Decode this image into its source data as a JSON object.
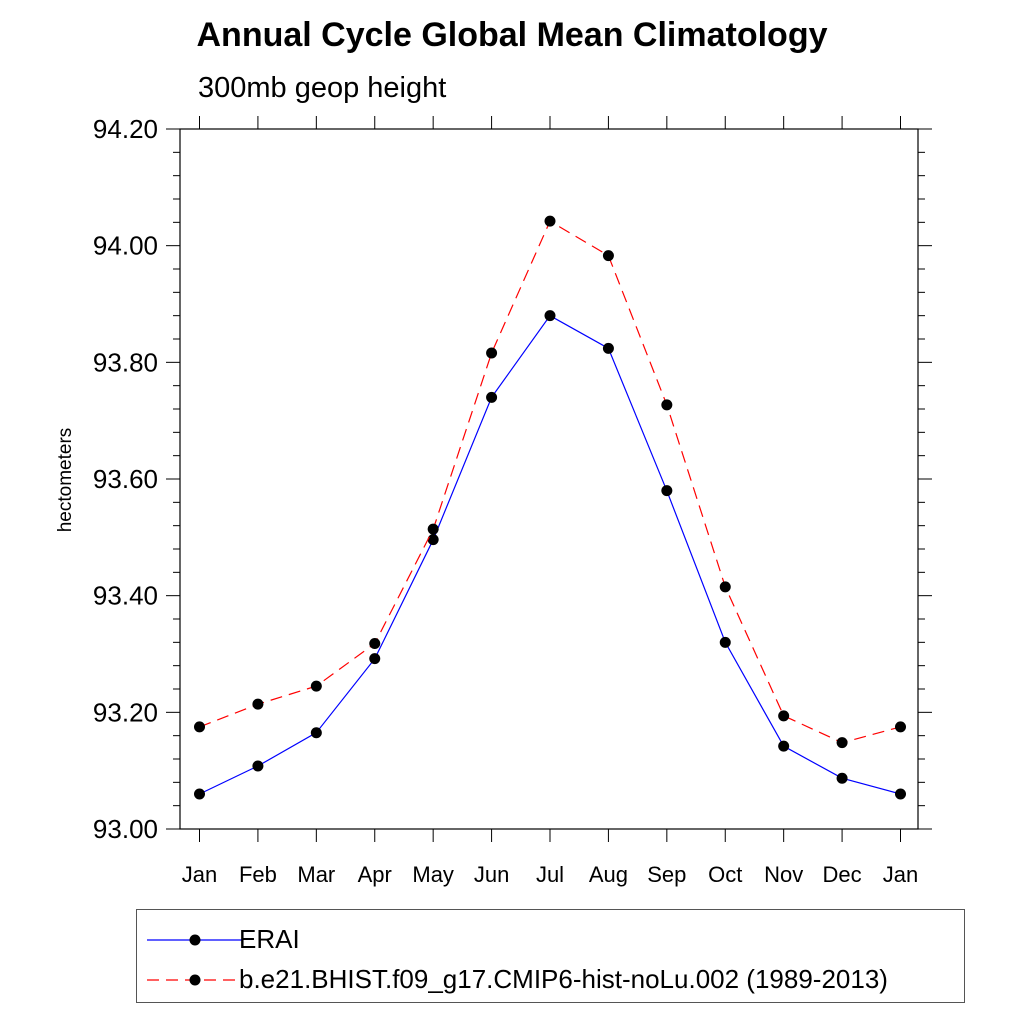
{
  "chart_data": {
    "type": "line",
    "title": "Annual Cycle Global Mean Climatology",
    "subtitle": "300mb geop height",
    "ylabel": "hectometers",
    "xlabel": "",
    "categories": [
      "Jan",
      "Feb",
      "Mar",
      "Apr",
      "May",
      "Jun",
      "Jul",
      "Aug",
      "Sep",
      "Oct",
      "Nov",
      "Dec",
      "Jan"
    ],
    "ylim": [
      93.0,
      94.2
    ],
    "yticks": [
      "93.00",
      "93.20",
      "93.40",
      "93.60",
      "93.80",
      "94.00",
      "94.20"
    ],
    "series": [
      {
        "name": "ERAI",
        "color": "#0000ff",
        "dash": "solid",
        "values": [
          93.06,
          93.108,
          93.165,
          93.292,
          93.496,
          93.74,
          93.88,
          93.824,
          93.58,
          93.32,
          93.142,
          93.087,
          93.06
        ]
      },
      {
        "name": "b.e21.BHIST.f09_g17.CMIP6-hist-noLu.002 (1989-2013)",
        "color": "#ff0000",
        "dash": "dashed",
        "values": [
          93.175,
          93.214,
          93.245,
          93.318,
          93.514,
          93.816,
          94.042,
          93.983,
          93.727,
          93.415,
          93.194,
          93.148,
          93.175
        ]
      }
    ],
    "legend": "bottom"
  }
}
